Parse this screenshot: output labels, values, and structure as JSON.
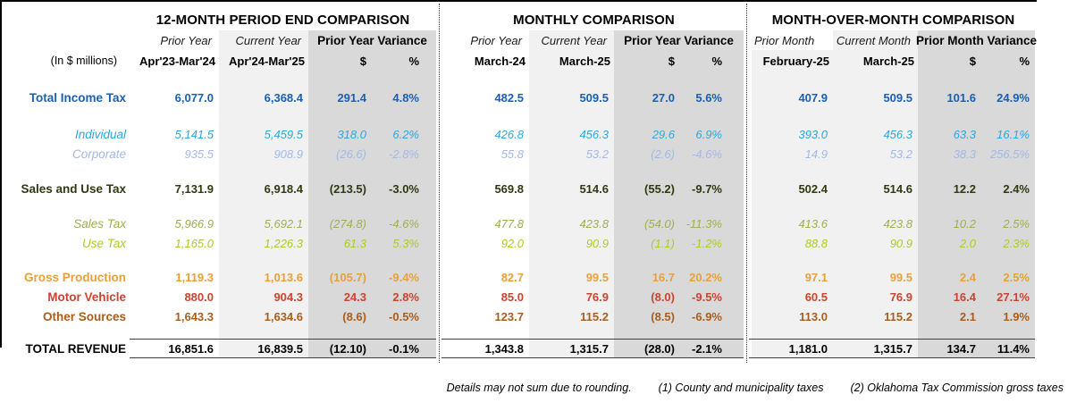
{
  "report": {
    "unit_label": "(In $ millions)",
    "sections": [
      {
        "title": "12-MONTH PERIOD END COMPARISON",
        "col1_label": "Prior Year",
        "col1_period": "Apr'23-Mar'24",
        "col2_label": "Current Year",
        "col2_period": "Apr'24-Mar'25",
        "variance_label": "Prior Year Variance",
        "dollar_symbol": "$",
        "percent_symbol": "%"
      },
      {
        "title": "MONTHLY COMPARISON",
        "col1_label": "Prior Year",
        "col1_period": "March-24",
        "col2_label": "Current Year",
        "col2_period": "March-25",
        "variance_label": "Prior Year Variance",
        "dollar_symbol": "$",
        "percent_symbol": "%"
      },
      {
        "title": "MONTH-OVER-MONTH COMPARISON",
        "col1_label": "Prior Month",
        "col1_period": "February-25",
        "col2_label": "Current Month",
        "col2_period": "March-25",
        "variance_label": "Prior Month Variance",
        "dollar_symbol": "$",
        "percent_symbol": "%"
      }
    ],
    "rows": [
      {
        "label": "Total Income Tax",
        "style": "bold",
        "color": "#1A5FB4",
        "s1": [
          "6,077.0",
          "6,368.4",
          "291.4",
          "4.8%"
        ],
        "s2": [
          "482.5",
          "509.5",
          "27.0",
          "5.6%"
        ],
        "s3": [
          "407.9",
          "509.5",
          "101.6",
          "24.9%"
        ]
      },
      {
        "label": "Individual",
        "style": "italic",
        "color": "#2FA6DF",
        "s1": [
          "5,141.5",
          "5,459.5",
          "318.0",
          "6.2%"
        ],
        "s2": [
          "426.8",
          "456.3",
          "29.6",
          "6.9%"
        ],
        "s3": [
          "393.0",
          "456.3",
          "63.3",
          "16.1%"
        ]
      },
      {
        "label": "Corporate",
        "style": "italic",
        "color": "#A4B8E6",
        "s1": [
          "935.5",
          "908.9",
          "(26.6)",
          "-2.8%"
        ],
        "s2": [
          "55.8",
          "53.2",
          "(2.6)",
          "-4.6%"
        ],
        "s3": [
          "14.9",
          "53.2",
          "38.3",
          "256.5%"
        ]
      },
      {
        "label": "Sales and Use Tax",
        "style": "bold",
        "color": "#2E3A10",
        "s1": [
          "7,131.9",
          "6,918.4",
          "(213.5)",
          "-3.0%"
        ],
        "s2": [
          "569.8",
          "514.6",
          "(55.2)",
          "-9.7%"
        ],
        "s3": [
          "502.4",
          "514.6",
          "12.2",
          "2.4%"
        ]
      },
      {
        "label": "Sales Tax",
        "style": "italic",
        "color": "#A1AD52",
        "s1": [
          "5,966.9",
          "5,692.1",
          "(274.8)",
          "-4.6%"
        ],
        "s2": [
          "477.8",
          "423.8",
          "(54.0)",
          "-11.3%"
        ],
        "s3": [
          "413.6",
          "423.8",
          "10.2",
          "2.5%"
        ]
      },
      {
        "label": "Use Tax",
        "style": "italic",
        "color": "#A9CC29",
        "s1": [
          "1,165.0",
          "1,226.3",
          "61.3",
          "5.3%"
        ],
        "s2": [
          "92.0",
          "90.9",
          "(1.1)",
          "-1.2%"
        ],
        "s3": [
          "88.8",
          "90.9",
          "2.0",
          "2.3%"
        ]
      },
      {
        "label": "Gross Production",
        "style": "bold",
        "color": "#E8A03C",
        "s1": [
          "1,119.3",
          "1,013.6",
          "(105.7)",
          "-9.4%"
        ],
        "s2": [
          "82.7",
          "99.5",
          "16.7",
          "20.2%"
        ],
        "s3": [
          "97.1",
          "99.5",
          "2.4",
          "2.5%"
        ]
      },
      {
        "label": "Motor Vehicle",
        "style": "bold",
        "color": "#C8452F",
        "s1": [
          "880.0",
          "904.3",
          "24.3",
          "2.8%"
        ],
        "s2": [
          "85.0",
          "76.9",
          "(8.0)",
          "-9.5%"
        ],
        "s3": [
          "60.5",
          "76.9",
          "16.4",
          "27.1%"
        ]
      },
      {
        "label": "Other Sources",
        "style": "bold",
        "color": "#A95E1C",
        "s1": [
          "1,643.3",
          "1,634.6",
          "(8.6)",
          "-0.5%"
        ],
        "s2": [
          "123.7",
          "115.2",
          "(8.5)",
          "-6.9%"
        ],
        "s3": [
          "113.0",
          "115.2",
          "2.1",
          "1.9%"
        ]
      },
      {
        "label": "TOTAL REVENUE",
        "style": "bold",
        "color": "#000000",
        "s1": [
          "16,851.6",
          "16,839.5",
          "(12.10)",
          "-0.1%"
        ],
        "s2": [
          "1,343.8",
          "1,315.7",
          "(28.0)",
          "-2.1%"
        ],
        "s3": [
          "1,181.0",
          "1,315.7",
          "134.7",
          "11.4%"
        ]
      }
    ],
    "footnotes": [
      "Details may not sum due to rounding.",
      "(1) County and municipality taxes",
      "(2) Oklahoma Tax Commission gross taxes"
    ],
    "colors": {
      "column_light": "#F1F1F1",
      "column_dark": "#D9D9D9",
      "total_income_blue": "#1A5FB4",
      "individual_blue": "#2FA6DF",
      "corporate_blue": "#A4B8E6",
      "sales_use_green": "#2E3A10",
      "sales_tax_olive": "#A1AD52",
      "use_tax_green": "#A9CC29",
      "gross_production_orange": "#E8A03C",
      "motor_vehicle_red": "#C8452F",
      "other_sources_brown": "#A95E1C"
    }
  }
}
